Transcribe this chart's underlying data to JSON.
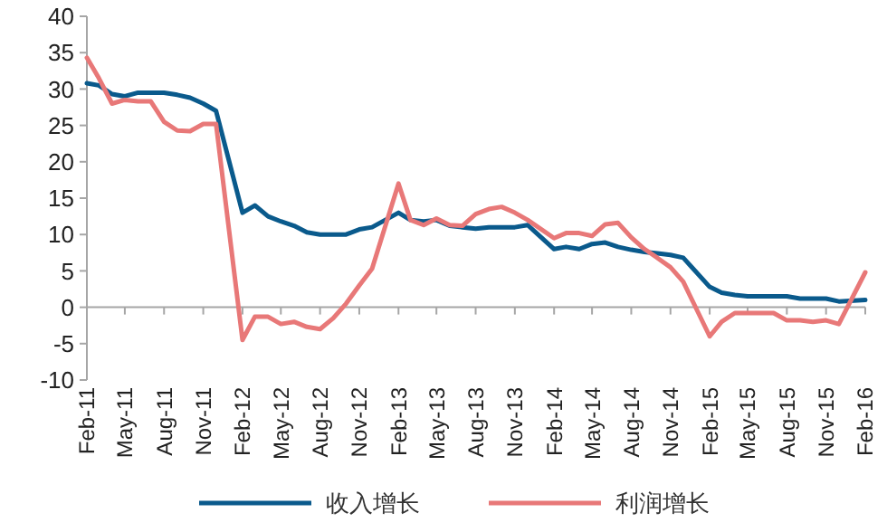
{
  "chart_data": {
    "type": "line",
    "x": [
      "2011-02",
      "2011-03",
      "2011-04",
      "2011-05",
      "2011-06",
      "2011-07",
      "2011-08",
      "2011-09",
      "2011-10",
      "2011-11",
      "2011-12",
      "2012-02",
      "2012-03",
      "2012-04",
      "2012-05",
      "2012-06",
      "2012-07",
      "2012-08",
      "2012-09",
      "2012-10",
      "2012-11",
      "2012-12",
      "2013-02",
      "2013-03",
      "2013-04",
      "2013-05",
      "2013-06",
      "2013-07",
      "2013-08",
      "2013-09",
      "2013-10",
      "2013-11",
      "2013-12",
      "2014-02",
      "2014-03",
      "2014-04",
      "2014-05",
      "2014-06",
      "2014-07",
      "2014-08",
      "2014-09",
      "2014-10",
      "2014-11",
      "2014-12",
      "2015-02",
      "2015-03",
      "2015-04",
      "2015-05",
      "2015-06",
      "2015-07",
      "2015-08",
      "2015-09",
      "2015-10",
      "2015-11",
      "2015-12",
      "2016-02"
    ],
    "series": [
      {
        "name": "收入增长",
        "color": "#0a5a8c",
        "values": [
          30.8,
          30.5,
          29.3,
          29,
          29.5,
          29.5,
          29.5,
          29.2,
          28.8,
          28,
          27,
          13,
          14,
          12.5,
          11.8,
          11.2,
          10.3,
          10,
          10,
          10,
          10.7,
          11,
          13,
          12,
          11.8,
          12,
          11.2,
          11,
          10.8,
          11,
          11,
          11,
          11.3,
          8,
          8.3,
          8,
          8.7,
          8.9,
          8.3,
          7.9,
          7.6,
          7.4,
          7.2,
          6.8,
          2.8,
          2,
          1.7,
          1.5,
          1.5,
          1.5,
          1.5,
          1.2,
          1.2,
          1.2,
          0.8,
          1
        ]
      },
      {
        "name": "利润增长",
        "color": "#e87878",
        "values": [
          34.3,
          31.5,
          28,
          28.5,
          28.3,
          28.3,
          25.5,
          24.3,
          24.2,
          25.2,
          25.2,
          -4.5,
          -1.3,
          -1.3,
          -2.3,
          -2,
          -2.7,
          -3,
          -1.5,
          0.5,
          3,
          5.3,
          17,
          12,
          11.3,
          12.2,
          11.3,
          11.2,
          12.8,
          13.5,
          13.8,
          13,
          12,
          9.5,
          10.2,
          10.2,
          9.8,
          11.4,
          11.6,
          9.6,
          8,
          6.8,
          5.5,
          3.5,
          -4,
          -2,
          -0.8,
          -0.8,
          -0.8,
          -0.8,
          -1.8,
          -1.8,
          -2,
          -1.8,
          -2.3,
          4.8
        ]
      }
    ],
    "xlim": [
      "2011-02",
      "2016-02"
    ],
    "xticks": [
      {
        "value": "2011-02",
        "label": "Feb-11"
      },
      {
        "value": "2011-05",
        "label": "May-11"
      },
      {
        "value": "2011-08",
        "label": "Aug-11"
      },
      {
        "value": "2011-11",
        "label": "Nov-11"
      },
      {
        "value": "2012-02",
        "label": "Feb-12"
      },
      {
        "value": "2012-05",
        "label": "May-12"
      },
      {
        "value": "2012-08",
        "label": "Aug-12"
      },
      {
        "value": "2012-11",
        "label": "Nov-12"
      },
      {
        "value": "2013-02",
        "label": "Feb-13"
      },
      {
        "value": "2013-05",
        "label": "May-13"
      },
      {
        "value": "2013-08",
        "label": "Aug-13"
      },
      {
        "value": "2013-11",
        "label": "Nov-13"
      },
      {
        "value": "2014-02",
        "label": "Feb-14"
      },
      {
        "value": "2014-05",
        "label": "May-14"
      },
      {
        "value": "2014-08",
        "label": "Aug-14"
      },
      {
        "value": "2014-11",
        "label": "Nov-14"
      },
      {
        "value": "2015-02",
        "label": "Feb-15"
      },
      {
        "value": "2015-05",
        "label": "May-15"
      },
      {
        "value": "2015-08",
        "label": "Aug-15"
      },
      {
        "value": "2015-11",
        "label": "Nov-15"
      },
      {
        "value": "2016-02",
        "label": "Feb-16"
      }
    ],
    "ylim": [
      -10,
      40
    ],
    "yticks": [
      -10,
      -5,
      0,
      5,
      10,
      15,
      20,
      25,
      30,
      35,
      40
    ],
    "legend": "bottom",
    "marker": "none",
    "line_style": "solid"
  }
}
